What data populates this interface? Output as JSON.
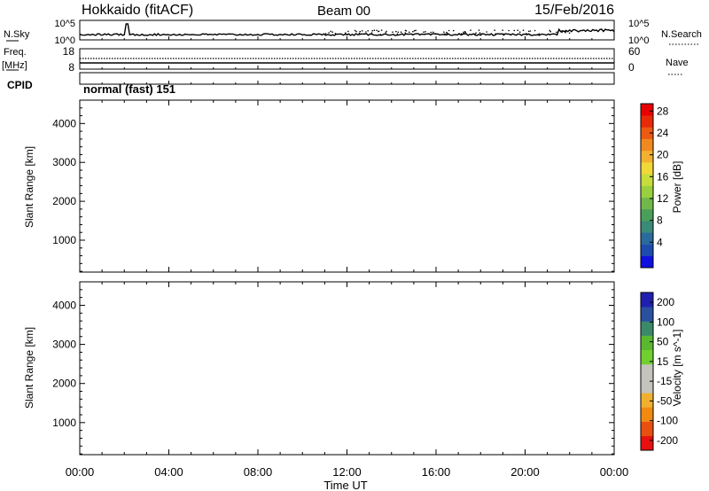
{
  "header": {
    "station": "Hokkaido (fitACF)",
    "beam": "Beam 00",
    "date": "15/Feb/2016"
  },
  "top_panel": {
    "nsky_label": "N.Sky",
    "nsky_ticks": [
      "10^5",
      "10^0"
    ],
    "nsky_right_ticks": [
      "10^5",
      "10^0"
    ],
    "nsearch_label": "N.Search",
    "freq_label": "Freq.",
    "freq_unit": "[MHz]",
    "freq_ticks": [
      "18",
      "8"
    ],
    "nave_label": "Nave",
    "nave_ticks": [
      "60",
      "0"
    ],
    "cpid_label": "CPID",
    "cpid_value": "normal (fast) 151"
  },
  "chart_data": [
    {
      "type": "heatmap",
      "title": "",
      "ylabel": "Slant Range [km]",
      "yticks": [
        "1000",
        "2000",
        "3000",
        "4000"
      ],
      "ylim": [
        180,
        4600
      ],
      "colorbar_label": "Power [dB]",
      "colorbar_ticks": [
        "4",
        "8",
        "12",
        "16",
        "20",
        "24",
        "28"
      ],
      "colorbar_colors": [
        "#1010e0",
        "#1e4cae",
        "#2a6a9c",
        "#3a8a78",
        "#4aa05a",
        "#70b84a",
        "#9ad040",
        "#c8dc3c",
        "#f0d838",
        "#f4b030",
        "#f08a20",
        "#ec5a12",
        "#e82a08",
        "#e80000"
      ],
      "dominant_colors": [
        "#e82a08",
        "#f08a20",
        "#70b84a",
        "#3a8a78"
      ]
    },
    {
      "type": "heatmap",
      "title": "",
      "ylabel": "Slant Range [km]",
      "yticks": [
        "1000",
        "2000",
        "3000",
        "4000"
      ],
      "ylim": [
        180,
        4600
      ],
      "colorbar_label": "Velocity [m s^-1]",
      "colorbar_ticks": [
        "200",
        "100",
        "50",
        "15",
        "-15",
        "-50",
        "-100",
        "-200"
      ],
      "colorbar_colors": [
        "#2020b0",
        "#2a50a0",
        "#3a8a6a",
        "#5ab830",
        "#70d030",
        "#c4c4bc",
        "#c4c4bc",
        "#f0b030",
        "#f08a10",
        "#e85010",
        "#e81010"
      ],
      "dominant_colors": [
        "#c4c4bc",
        "#70d030",
        "#f0a020"
      ],
      "xlabel": "Time UT",
      "xticks": [
        "00:00",
        "04:00",
        "08:00",
        "12:00",
        "16:00",
        "20:00",
        "00:00"
      ],
      "xlim_hours": [
        0,
        24
      ]
    }
  ]
}
